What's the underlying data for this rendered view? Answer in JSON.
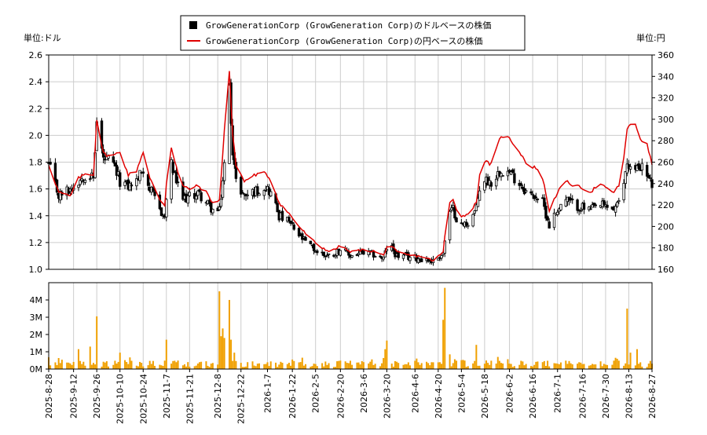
{
  "chart_data": [
    {
      "type": "candlestick+line",
      "legend": {
        "placement": "top-center",
        "entries": [
          {
            "label": "GrowGenerationCorp (GrowGeneration Corp)のドルベースの株価",
            "color": "#000000",
            "marker": "square"
          },
          {
            "label": "GrowGenerationCorp (GrowGeneration Corp)の円ベースの株価",
            "color": "#e00000",
            "marker": "line"
          }
        ]
      },
      "left_unit_label": "単位:ドル",
      "right_unit_label": "単位:円",
      "y_left": {
        "min": 1.0,
        "max": 2.6,
        "ticks": [
          "1.0",
          "1.2",
          "1.4",
          "1.6",
          "1.8",
          "2.0",
          "2.2",
          "2.4",
          "2.6"
        ]
      },
      "y_right": {
        "min": 160,
        "max": 360,
        "ticks": [
          "160",
          "180",
          "200",
          "220",
          "240",
          "260",
          "280",
          "300",
          "320",
          "340",
          "360"
        ]
      },
      "grid": true,
      "usd_close_anchors": [
        [
          "2025-08-28",
          1.78
        ],
        [
          "2025-09-03",
          1.55
        ],
        [
          "2025-09-10",
          1.6
        ],
        [
          "2025-09-15",
          1.66
        ],
        [
          "2025-09-20",
          1.72
        ],
        [
          "2025-09-24",
          1.68
        ],
        [
          "2025-09-26",
          2.1
        ],
        [
          "2025-09-30",
          1.82
        ],
        [
          "2025-10-05",
          1.8
        ],
        [
          "2025-10-10",
          1.66
        ],
        [
          "2025-10-15",
          1.62
        ],
        [
          "2025-10-20",
          1.66
        ],
        [
          "2025-10-24",
          1.75
        ],
        [
          "2025-10-28",
          1.6
        ],
        [
          "2025-11-03",
          1.45
        ],
        [
          "2025-11-06",
          1.38
        ],
        [
          "2025-11-09",
          1.82
        ],
        [
          "2025-11-12",
          1.7
        ],
        [
          "2025-11-16",
          1.52
        ],
        [
          "2025-11-21",
          1.54
        ],
        [
          "2025-11-26",
          1.57
        ],
        [
          "2025-12-01",
          1.5
        ],
        [
          "2025-12-05",
          1.44
        ],
        [
          "2025-12-09",
          1.43
        ],
        [
          "2025-12-12",
          1.78
        ],
        [
          "2025-12-15",
          2.35
        ],
        [
          "2025-12-17",
          1.9
        ],
        [
          "2025-12-19",
          1.65
        ],
        [
          "2025-12-24",
          1.55
        ],
        [
          "2025-12-30",
          1.58
        ],
        [
          "2026-01-06",
          1.62
        ],
        [
          "2026-01-10",
          1.55
        ],
        [
          "2026-01-14",
          1.4
        ],
        [
          "2026-01-20",
          1.35
        ],
        [
          "2026-01-26",
          1.25
        ],
        [
          "2026-02-01",
          1.18
        ],
        [
          "2026-02-07",
          1.12
        ],
        [
          "2026-02-14",
          1.1
        ],
        [
          "2026-02-20",
          1.15
        ],
        [
          "2026-02-26",
          1.1
        ],
        [
          "2026-03-04",
          1.12
        ],
        [
          "2026-03-12",
          1.11
        ],
        [
          "2026-03-18",
          1.08
        ],
        [
          "2026-03-21",
          1.2
        ],
        [
          "2026-03-26",
          1.1
        ],
        [
          "2026-04-03",
          1.09
        ],
        [
          "2026-04-10",
          1.08
        ],
        [
          "2026-04-17",
          1.06
        ],
        [
          "2026-04-23",
          1.12
        ],
        [
          "2026-04-26",
          1.4
        ],
        [
          "2026-04-29",
          1.45
        ],
        [
          "2026-05-03",
          1.32
        ],
        [
          "2026-05-08",
          1.35
        ],
        [
          "2026-05-13",
          1.45
        ],
        [
          "2026-05-16",
          1.68
        ],
        [
          "2026-05-22",
          1.65
        ],
        [
          "2026-05-28",
          1.75
        ],
        [
          "2026-06-02",
          1.72
        ],
        [
          "2026-06-08",
          1.65
        ],
        [
          "2026-06-14",
          1.55
        ],
        [
          "2026-06-18",
          1.55
        ],
        [
          "2026-06-22",
          1.5
        ],
        [
          "2026-06-26",
          1.33
        ],
        [
          "2026-07-01",
          1.45
        ],
        [
          "2026-07-06",
          1.52
        ],
        [
          "2026-07-11",
          1.48
        ],
        [
          "2026-07-16",
          1.46
        ],
        [
          "2026-07-21",
          1.44
        ],
        [
          "2026-07-26",
          1.48
        ],
        [
          "2026-07-30",
          1.47
        ],
        [
          "2026-08-04",
          1.45
        ],
        [
          "2026-08-08",
          1.5
        ],
        [
          "2026-08-12",
          1.8
        ],
        [
          "2026-08-16",
          1.72
        ],
        [
          "2026-08-20",
          1.78
        ],
        [
          "2026-08-24",
          1.7
        ],
        [
          "2026-08-27",
          1.63
        ]
      ],
      "jpy_line_anchors": [
        [
          "2025-08-28",
          258
        ],
        [
          "2025-09-03",
          232
        ],
        [
          "2025-09-10",
          228
        ],
        [
          "2025-09-15",
          245
        ],
        [
          "2025-09-20",
          250
        ],
        [
          "2025-09-24",
          248
        ],
        [
          "2025-09-26",
          300
        ],
        [
          "2025-09-30",
          268
        ],
        [
          "2025-10-05",
          265
        ],
        [
          "2025-10-10",
          270
        ],
        [
          "2025-10-15",
          248
        ],
        [
          "2025-10-20",
          252
        ],
        [
          "2025-10-24",
          270
        ],
        [
          "2025-10-28",
          245
        ],
        [
          "2025-11-03",
          225
        ],
        [
          "2025-11-06",
          220
        ],
        [
          "2025-11-09",
          280
        ],
        [
          "2025-11-12",
          262
        ],
        [
          "2025-11-16",
          238
        ],
        [
          "2025-11-21",
          235
        ],
        [
          "2025-11-26",
          238
        ],
        [
          "2025-12-01",
          232
        ],
        [
          "2025-12-05",
          222
        ],
        [
          "2025-12-09",
          224
        ],
        [
          "2025-12-12",
          290
        ],
        [
          "2025-12-15",
          345
        ],
        [
          "2025-12-17",
          285
        ],
        [
          "2025-12-19",
          258
        ],
        [
          "2025-12-24",
          242
        ],
        [
          "2025-12-30",
          248
        ],
        [
          "2026-01-06",
          250
        ],
        [
          "2026-01-10",
          240
        ],
        [
          "2026-01-14",
          222
        ],
        [
          "2026-01-20",
          212
        ],
        [
          "2026-01-26",
          200
        ],
        [
          "2026-02-01",
          190
        ],
        [
          "2026-02-07",
          182
        ],
        [
          "2026-02-14",
          176
        ],
        [
          "2026-02-20",
          182
        ],
        [
          "2026-02-26",
          176
        ],
        [
          "2026-03-04",
          178
        ],
        [
          "2026-03-12",
          177
        ],
        [
          "2026-03-18",
          173
        ],
        [
          "2026-03-21",
          185
        ],
        [
          "2026-03-26",
          176
        ],
        [
          "2026-04-03",
          173
        ],
        [
          "2026-04-10",
          172
        ],
        [
          "2026-04-17",
          168
        ],
        [
          "2026-04-23",
          176
        ],
        [
          "2026-04-26",
          220
        ],
        [
          "2026-04-29",
          226
        ],
        [
          "2026-05-03",
          208
        ],
        [
          "2026-05-08",
          212
        ],
        [
          "2026-05-13",
          222
        ],
        [
          "2026-05-16",
          262
        ],
        [
          "2026-05-22",
          258
        ],
        [
          "2026-05-28",
          285
        ],
        [
          "2026-06-02",
          282
        ],
        [
          "2026-06-08",
          270
        ],
        [
          "2026-06-14",
          255
        ],
        [
          "2026-06-18",
          255
        ],
        [
          "2026-06-22",
          245
        ],
        [
          "2026-06-26",
          215
        ],
        [
          "2026-07-01",
          232
        ],
        [
          "2026-07-06",
          242
        ],
        [
          "2026-07-11",
          238
        ],
        [
          "2026-07-16",
          236
        ],
        [
          "2026-07-21",
          232
        ],
        [
          "2026-07-26",
          240
        ],
        [
          "2026-07-30",
          236
        ],
        [
          "2026-08-04",
          232
        ],
        [
          "2026-08-08",
          240
        ],
        [
          "2026-08-12",
          290
        ],
        [
          "2026-08-16",
          300
        ],
        [
          "2026-08-20",
          282
        ],
        [
          "2026-08-24",
          276
        ],
        [
          "2026-08-27",
          258
        ]
      ]
    },
    {
      "type": "bar",
      "series_name": "volume",
      "color": "#f0a000",
      "y": {
        "min": 0,
        "max": 5000000,
        "ticks": [
          "0M",
          "1M",
          "2M",
          "3M",
          "4M"
        ]
      },
      "x_ticks": [
        "2025-8-28",
        "2025-9-12",
        "2025-9-26",
        "2025-10-10",
        "2025-10-24",
        "2025-11-7",
        "2025-11-21",
        "2025-12-8",
        "2025-12-22",
        "2026-1-7",
        "2026-1-22",
        "2026-2-5",
        "2026-2-20",
        "2026-3-6",
        "2026-3-20",
        "2026-4-6",
        "2026-4-20",
        "2026-5-4",
        "2026-5-18",
        "2026-6-2",
        "2026-6-16",
        "2026-7-1",
        "2026-7-16",
        "2026-7-30",
        "2026-8-13",
        "2026-8-27"
      ],
      "spikes": [
        [
          "2025-09-26",
          3050000
        ],
        [
          "2025-09-22",
          1300000
        ],
        [
          "2025-09-15",
          1150000
        ],
        [
          "2025-10-10",
          950000
        ],
        [
          "2025-11-07",
          1700000
        ],
        [
          "2025-12-09",
          4500000
        ],
        [
          "2025-12-10",
          1900000
        ],
        [
          "2025-12-11",
          2350000
        ],
        [
          "2025-12-12",
          1800000
        ],
        [
          "2025-12-15",
          4000000
        ],
        [
          "2025-12-16",
          1700000
        ],
        [
          "2025-12-18",
          950000
        ],
        [
          "2026-01-22",
          550000
        ],
        [
          "2026-03-19",
          1150000
        ],
        [
          "2026-03-20",
          1650000
        ],
        [
          "2026-04-23",
          2850000
        ],
        [
          "2026-04-24",
          4700000
        ],
        [
          "2026-04-27",
          850000
        ],
        [
          "2026-05-13",
          1400000
        ],
        [
          "2026-08-12",
          3500000
        ],
        [
          "2026-08-14",
          950000
        ],
        [
          "2026-08-18",
          1150000
        ]
      ]
    }
  ]
}
